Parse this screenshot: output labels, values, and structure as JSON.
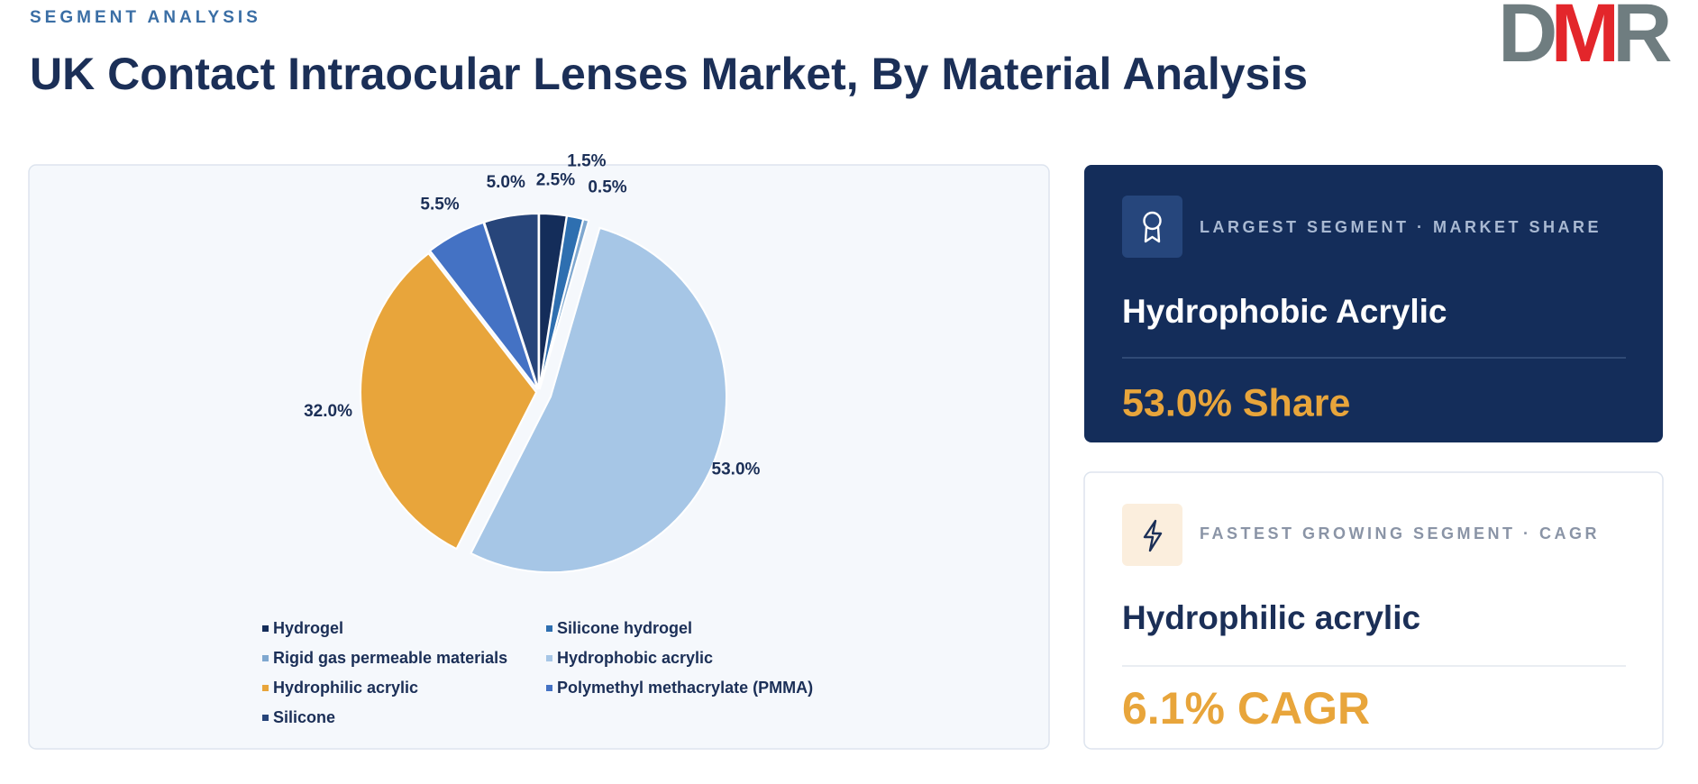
{
  "header": {
    "eyebrow": "SEGMENT ANALYSIS",
    "title": "UK Contact Intraocular Lenses Market, By Material Analysis",
    "logo": [
      {
        "text": "D",
        "color": "#6f7d80"
      },
      {
        "text": "M",
        "color": "#e3262b"
      },
      {
        "text": "R",
        "color": "#6f7d80"
      }
    ]
  },
  "chart_data": {
    "type": "pie",
    "categories": [
      "Hydrogel",
      "Silicone hydrogel",
      "Rigid gas permeable materials",
      "Hydrophobic acrylic",
      "Hydrophilic acrylic",
      "Polymethyl methacrylate (PMMA)",
      "Silicone"
    ],
    "values": [
      2.5,
      1.5,
      0.5,
      53.0,
      32.0,
      5.5,
      5.0
    ],
    "value_labels": [
      "2.5%",
      "1.5%",
      "0.5%",
      "53.0%",
      "32.0%",
      "5.5%",
      "5.0%"
    ],
    "colors": [
      "#142d5a",
      "#2e6fb0",
      "#7fa8d0",
      "#a6c6e6",
      "#e8a53b",
      "#4472c4",
      "#27457a"
    ],
    "legend": "bottom"
  },
  "cards": [
    {
      "label": "LARGEST SEGMENT  ·  MARKET SHARE",
      "name": "Hydrophobic Acrylic",
      "metric": "53.0% Share"
    },
    {
      "label": "FASTEST GROWING SEGMENT  ·  CAGR",
      "name": "Hydrophilic acrylic",
      "metric": "6.1% CAGR"
    }
  ]
}
